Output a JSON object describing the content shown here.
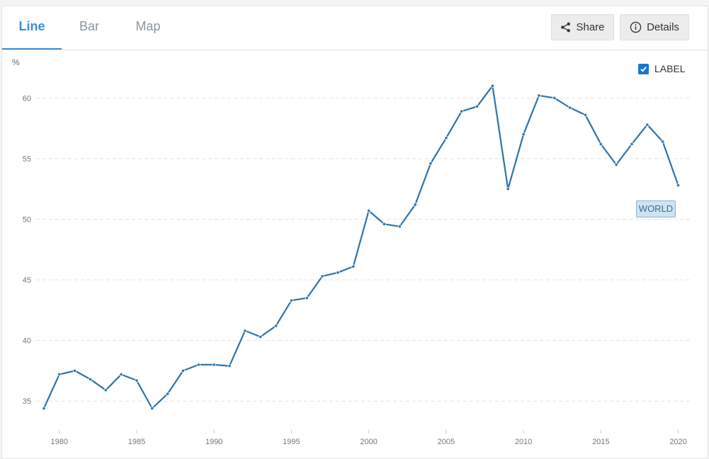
{
  "tabs": [
    {
      "label": "Line",
      "active": true
    },
    {
      "label": "Bar",
      "active": false
    },
    {
      "label": "Map",
      "active": false
    }
  ],
  "toolbar": {
    "share_label": "Share",
    "share_icon": "share-icon",
    "details_label": "Details",
    "details_icon": "info-icon"
  },
  "label_toggle": {
    "label": "LABEL",
    "checked": true
  },
  "colors": {
    "line": "#2f73a8",
    "accent": "#3b8fd6",
    "grid": "#e2e2e2",
    "checkbox": "#1976d2"
  },
  "chart_data": {
    "type": "line",
    "ylabel": "%",
    "ylim": [
      32.5,
      63
    ],
    "xlim": [
      1978.5,
      2020.8
    ],
    "yticks": [
      35,
      40,
      45,
      50,
      55,
      60
    ],
    "xticks": [
      1980,
      1985,
      1990,
      1995,
      2000,
      2005,
      2010,
      2015,
      2020
    ],
    "grid": true,
    "series": [
      {
        "name": "WORLD",
        "x": [
          1979,
          1980,
          1981,
          1982,
          1983,
          1984,
          1985,
          1986,
          1987,
          1988,
          1989,
          1990,
          1991,
          1992,
          1993,
          1994,
          1995,
          1996,
          1997,
          1998,
          1999,
          2000,
          2001,
          2002,
          2003,
          2004,
          2005,
          2006,
          2007,
          2008,
          2009,
          2010,
          2011,
          2012,
          2013,
          2014,
          2015,
          2016,
          2017,
          2018,
          2019,
          2020
        ],
        "values": [
          34.4,
          37.2,
          37.5,
          36.8,
          35.9,
          37.2,
          36.7,
          34.4,
          35.6,
          37.5,
          38.0,
          38.0,
          37.9,
          40.8,
          40.3,
          41.2,
          43.3,
          43.5,
          45.3,
          45.6,
          46.1,
          50.7,
          49.6,
          49.4,
          51.2,
          54.6,
          56.7,
          58.9,
          59.3,
          61.0,
          52.5,
          57.0,
          60.2,
          60.0,
          59.2,
          58.6,
          56.2,
          54.5,
          56.2,
          57.8,
          56.4,
          52.8
        ]
      }
    ]
  }
}
